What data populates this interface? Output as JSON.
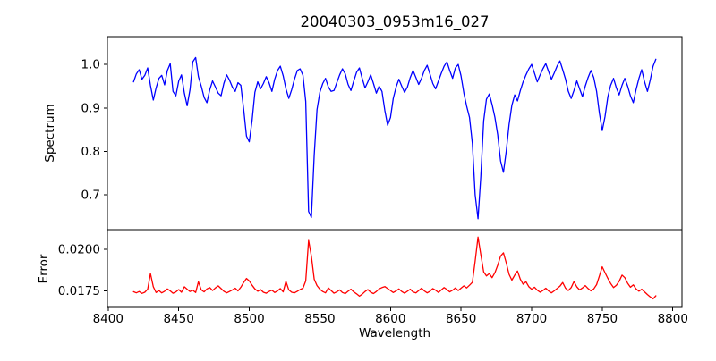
{
  "chart_data": {
    "type": "line",
    "title": "20040303_0953m16_027",
    "xlabel": "Wavelength",
    "grid": false,
    "legend": "none",
    "xlim": [
      8399.5,
      8806.5
    ],
    "x_ticks": [
      8400,
      8450,
      8500,
      8550,
      8600,
      8650,
      8700,
      8750,
      8800
    ],
    "x_tick_labels": [
      "8400",
      "8450",
      "8500",
      "8550",
      "8600",
      "8650",
      "8700",
      "8750",
      "8800"
    ],
    "panels": [
      {
        "name": "spectrum",
        "ylabel": "Spectrum",
        "color": "#0000ff",
        "ylim": [
          0.62,
          1.064
        ],
        "y_ticks": [
          0.7,
          0.8,
          0.9,
          1.0
        ],
        "y_tick_labels": [
          "0.7",
          "0.8",
          "0.9",
          "1.0"
        ],
        "x_start": 8418,
        "x_step": 2,
        "values": [
          0.96,
          0.978,
          0.988,
          0.966,
          0.975,
          0.992,
          0.952,
          0.918,
          0.946,
          0.968,
          0.975,
          0.953,
          0.986,
          1.002,
          0.938,
          0.928,
          0.962,
          0.976,
          0.934,
          0.905,
          0.942,
          1.006,
          1.016,
          0.972,
          0.95,
          0.924,
          0.912,
          0.942,
          0.962,
          0.948,
          0.934,
          0.928,
          0.956,
          0.976,
          0.964,
          0.948,
          0.938,
          0.958,
          0.952,
          0.898,
          0.835,
          0.822,
          0.872,
          0.936,
          0.96,
          0.944,
          0.956,
          0.972,
          0.958,
          0.938,
          0.966,
          0.986,
          0.996,
          0.974,
          0.944,
          0.922,
          0.942,
          0.966,
          0.986,
          0.99,
          0.975,
          0.915,
          0.662,
          0.648,
          0.792,
          0.896,
          0.936,
          0.956,
          0.968,
          0.948,
          0.938,
          0.94,
          0.958,
          0.976,
          0.99,
          0.978,
          0.954,
          0.94,
          0.962,
          0.982,
          0.992,
          0.968,
          0.946,
          0.96,
          0.976,
          0.956,
          0.934,
          0.95,
          0.938,
          0.894,
          0.86,
          0.878,
          0.922,
          0.948,
          0.966,
          0.95,
          0.936,
          0.948,
          0.97,
          0.986,
          0.97,
          0.954,
          0.968,
          0.986,
          0.998,
          0.978,
          0.956,
          0.944,
          0.962,
          0.98,
          0.996,
          1.006,
          0.986,
          0.968,
          0.992,
          1.0,
          0.974,
          0.934,
          0.904,
          0.878,
          0.818,
          0.7,
          0.645,
          0.742,
          0.87,
          0.92,
          0.932,
          0.908,
          0.878,
          0.838,
          0.778,
          0.752,
          0.8,
          0.862,
          0.906,
          0.93,
          0.916,
          0.94,
          0.96,
          0.976,
          0.99,
          1.0,
          0.98,
          0.96,
          0.976,
          0.99,
          1.002,
          0.984,
          0.966,
          0.98,
          0.996,
          1.008,
          0.988,
          0.966,
          0.938,
          0.922,
          0.94,
          0.962,
          0.944,
          0.926,
          0.95,
          0.97,
          0.986,
          0.97,
          0.938,
          0.888,
          0.848,
          0.88,
          0.926,
          0.952,
          0.968,
          0.946,
          0.93,
          0.952,
          0.968,
          0.95,
          0.928,
          0.912,
          0.942,
          0.968,
          0.988,
          0.96,
          0.938,
          0.964,
          0.996,
          1.012
        ]
      },
      {
        "name": "error",
        "ylabel": "Error",
        "color": "#ff0000",
        "ylim": [
          0.0165,
          0.0212
        ],
        "y_ticks": [
          0.0175,
          0.02
        ],
        "y_tick_labels": [
          "0.0175",
          "0.0200"
        ],
        "x_start": 8418,
        "x_step": 2,
        "values": [
          0.01745,
          0.01738,
          0.01746,
          0.01735,
          0.01742,
          0.0176,
          0.01855,
          0.01775,
          0.0174,
          0.01752,
          0.01738,
          0.01748,
          0.01762,
          0.0175,
          0.01736,
          0.01744,
          0.01758,
          0.01742,
          0.01775,
          0.0176,
          0.01746,
          0.01754,
          0.0174,
          0.01805,
          0.01756,
          0.01744,
          0.01762,
          0.0177,
          0.01752,
          0.01768,
          0.0178,
          0.01764,
          0.01748,
          0.01738,
          0.01746,
          0.01756,
          0.01766,
          0.0175,
          0.01772,
          0.018,
          0.01825,
          0.0181,
          0.01784,
          0.01762,
          0.01748,
          0.01758,
          0.01742,
          0.01736,
          0.01746,
          0.01754,
          0.0174,
          0.0175,
          0.01764,
          0.01744,
          0.01808,
          0.01756,
          0.01742,
          0.01738,
          0.01748,
          0.01758,
          0.01766,
          0.0181,
          0.02055,
          0.0196,
          0.0182,
          0.01782,
          0.0176,
          0.01746,
          0.01738,
          0.01768,
          0.01752,
          0.01736,
          0.01744,
          0.01756,
          0.0174,
          0.01734,
          0.01748,
          0.0176,
          0.01744,
          0.01732,
          0.01718,
          0.0173,
          0.01746,
          0.01758,
          0.01742,
          0.01734,
          0.01746,
          0.01762,
          0.0177,
          0.01776,
          0.01764,
          0.01752,
          0.0174,
          0.0175,
          0.01762,
          0.01746,
          0.01736,
          0.01748,
          0.0176,
          0.01744,
          0.01738,
          0.01752,
          0.01766,
          0.0175,
          0.01738,
          0.01748,
          0.01764,
          0.01754,
          0.0174,
          0.01756,
          0.0177,
          0.01758,
          0.01744,
          0.01754,
          0.01768,
          0.01752,
          0.01766,
          0.0178,
          0.01768,
          0.01784,
          0.01802,
          0.0193,
          0.02075,
          0.0197,
          0.01865,
          0.0184,
          0.01855,
          0.0183,
          0.0186,
          0.01905,
          0.0196,
          0.0198,
          0.0192,
          0.0185,
          0.01815,
          0.01845,
          0.0187,
          0.0182,
          0.0179,
          0.01805,
          0.01775,
          0.0176,
          0.01772,
          0.01754,
          0.01742,
          0.01752,
          0.01766,
          0.0175,
          0.01738,
          0.0175,
          0.01764,
          0.01778,
          0.018,
          0.01766,
          0.01752,
          0.0177,
          0.01806,
          0.01774,
          0.01756,
          0.01768,
          0.01782,
          0.01764,
          0.0175,
          0.01762,
          0.01788,
          0.0184,
          0.01895,
          0.0186,
          0.01825,
          0.01795,
          0.0177,
          0.01784,
          0.01808,
          0.01845,
          0.0183,
          0.01796,
          0.01772,
          0.01786,
          0.01762,
          0.01748,
          0.0176,
          0.01744,
          0.01728,
          0.01714,
          0.01702,
          0.0172
        ]
      }
    ]
  }
}
